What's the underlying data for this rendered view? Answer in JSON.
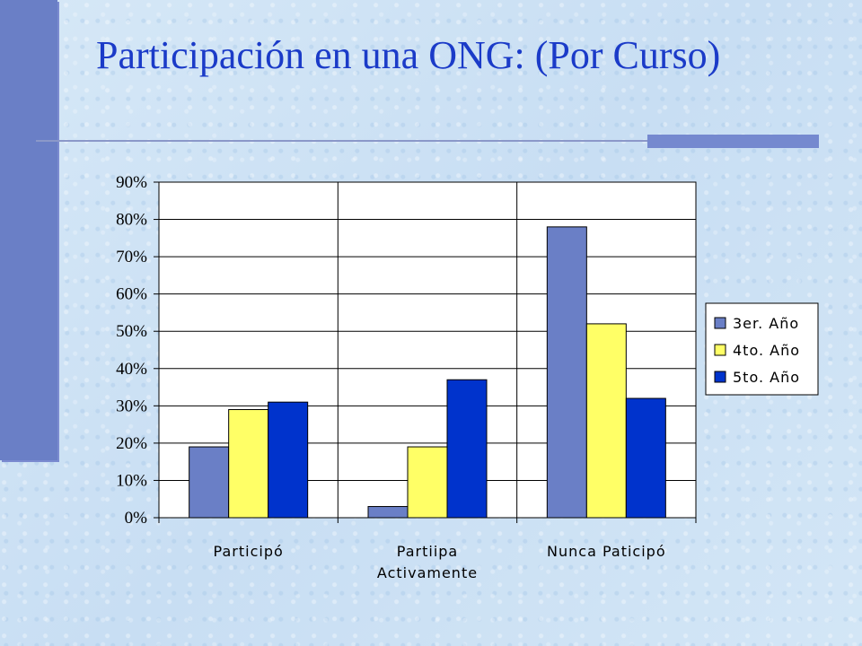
{
  "slide": {
    "title": "Participación en una ONG: (Por Curso)"
  },
  "colors": {
    "title": "#1b3bc8",
    "accent_bar": "#6a7fc6",
    "series": [
      "#6a7fc6",
      "#ffff66",
      "#0033cc"
    ]
  },
  "chart_data": {
    "type": "bar",
    "title": "",
    "xlabel": "",
    "ylabel": "",
    "categories": [
      [
        "Participó"
      ],
      [
        "Partiipa",
        "Activamente"
      ],
      [
        "Nunca Paticipó"
      ]
    ],
    "series": [
      {
        "name": "3er. Año",
        "values": [
          19,
          3,
          78
        ]
      },
      {
        "name": "4to. Año",
        "values": [
          29,
          19,
          52
        ]
      },
      {
        "name": "5to. Año",
        "values": [
          31,
          37,
          32
        ]
      }
    ],
    "ylim": [
      0,
      90
    ],
    "yticks": [
      0,
      10,
      20,
      30,
      40,
      50,
      60,
      70,
      80,
      90
    ],
    "ytick_labels": [
      "0%",
      "10%",
      "20%",
      "30%",
      "40%",
      "50%",
      "60%",
      "70%",
      "80%",
      "90%"
    ],
    "grid": true,
    "legend_position": "right"
  }
}
